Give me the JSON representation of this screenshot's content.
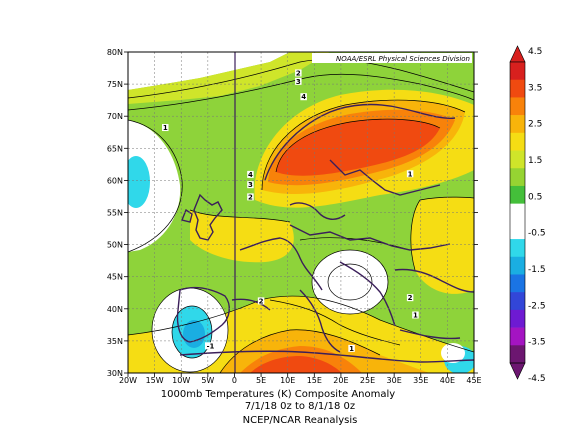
{
  "map": {
    "credit": "NOAA/ESRL Physical Sciences Division",
    "lat_labels": [
      "80N",
      "75N",
      "70N",
      "65N",
      "60N",
      "55N",
      "50N",
      "45N",
      "40N",
      "35N",
      "30N"
    ],
    "lon_labels": [
      "20W",
      "15W",
      "10W",
      "5W",
      "0",
      "5E",
      "10E",
      "15E",
      "20E",
      "25E",
      "30E",
      "35E",
      "40E",
      "45E"
    ],
    "extent": {
      "lon": [
        -20,
        45
      ],
      "lat": [
        30,
        80
      ]
    },
    "contour_labels": [
      {
        "text": "2",
        "lon": 12,
        "lat": 76.5
      },
      {
        "text": "3",
        "lon": 12,
        "lat": 75.2
      },
      {
        "text": "4",
        "lon": 13,
        "lat": 72.8
      },
      {
        "text": "1",
        "lon": -13,
        "lat": 68.0
      },
      {
        "text": "4",
        "lon": 3,
        "lat": 60.7
      },
      {
        "text": "3",
        "lon": 3,
        "lat": 59.1
      },
      {
        "text": "2",
        "lon": 3,
        "lat": 57.2
      },
      {
        "text": "1",
        "lon": 33,
        "lat": 60.8
      },
      {
        "text": "2",
        "lon": 5,
        "lat": 41.0
      },
      {
        "text": "2",
        "lon": 33,
        "lat": 41.5
      },
      {
        "text": "1",
        "lon": 34,
        "lat": 38.8
      },
      {
        "text": "1",
        "lon": 22,
        "lat": 33.6
      },
      {
        "text": "-1",
        "lon": -4.5,
        "lat": 34.0
      }
    ]
  },
  "colorbar": {
    "labels": [
      "4.5",
      "3.5",
      "2.5",
      "1.5",
      "0.5",
      "-0.5",
      "-1.5",
      "-2.5",
      "-3.5",
      "-4.5"
    ],
    "colors": [
      "#d8201e",
      "#f04a10",
      "#f8820a",
      "#f8b40a",
      "#f5dd14",
      "#cfe52a",
      "#96d432",
      "#44bf3a",
      "#ffffff",
      "#ffffff",
      "#30d8ea",
      "#1aaee2",
      "#1a74e4",
      "#3246d8",
      "#6e1ad2",
      "#a414c2",
      "#6c1670"
    ]
  },
  "caption": {
    "line1": "1000mb Temperatures (K)    Composite Anomaly",
    "line2": "7/1/18 0z  to 8/1/18 0z",
    "line3": "NCEP/NCAR Reanalysis"
  }
}
